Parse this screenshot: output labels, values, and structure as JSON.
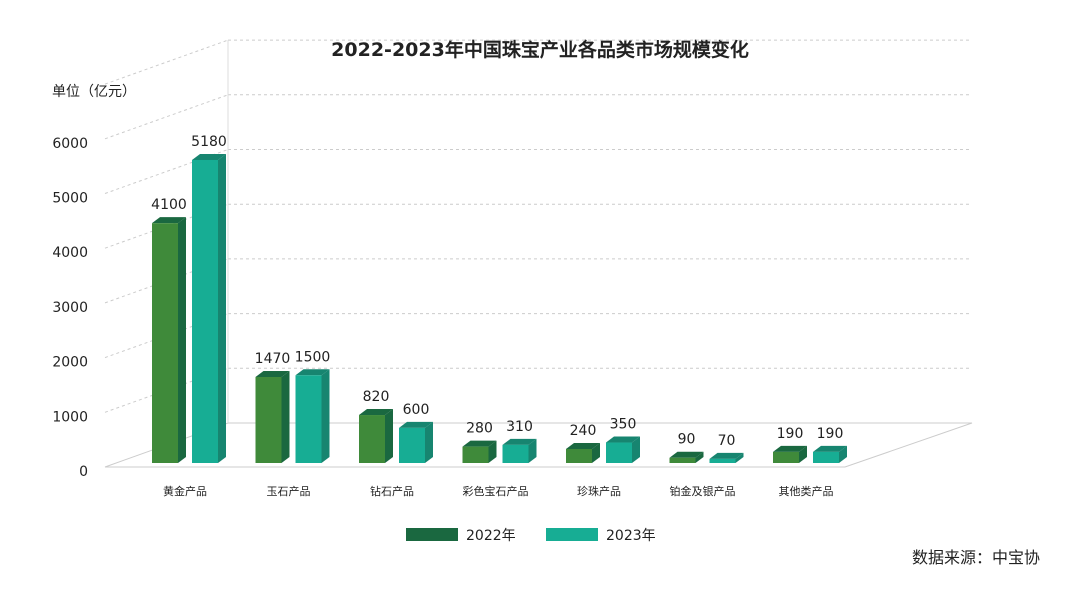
{
  "chart_data": {
    "type": "bar",
    "title": "2022-2023年中国珠宝产业各品类市场规模变化",
    "ylabel": "单位（亿元）",
    "xlabel": "",
    "ylim": [
      0,
      6000
    ],
    "yticks": [
      0,
      1000,
      2000,
      3000,
      4000,
      5000,
      6000
    ],
    "grid": true,
    "style": "3d",
    "legend_position": "bottom",
    "categories": [
      "黄金产品",
      "玉石产品",
      "钻石产品",
      "彩色宝石产品",
      "珍珠产品",
      "铂金及银产品",
      "其他类产品"
    ],
    "series": [
      {
        "name": "2022年",
        "values": [
          4100,
          1470,
          820,
          280,
          240,
          90,
          190
        ],
        "color": "#3f8a3a",
        "side_color": "#1a6840"
      },
      {
        "name": "2023年",
        "values": [
          5180,
          1500,
          600,
          310,
          350,
          70,
          190
        ],
        "color": "#17ad94",
        "side_color": "#178570"
      }
    ],
    "source": "数据来源：中宝协"
  }
}
